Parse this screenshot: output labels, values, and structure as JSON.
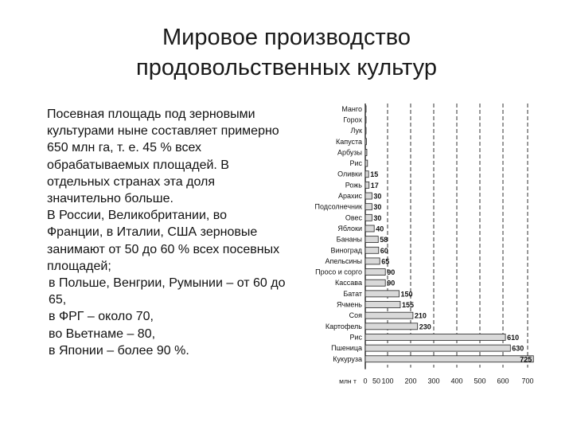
{
  "title": {
    "line1": "Мировое производство",
    "line2": "продовольственных культур"
  },
  "paragraphs": [
    "Посевная площадь под зерновыми культурами ныне составляет примерно 650 млн га, т. е. 45 % всех обрабатываемых площадей. В отдельных странах эта доля значительно больше.",
    "В России, Великобритании, во Франции, в Италии, США зерновые занимают от 50 до 60 % всех посевных площадей;",
    "в Польше, Венгрии, Румынии – от 60 до 65,",
    "в ФРГ – около 70,",
    "во Вьетнаме – 80,",
    "в Японии – более 90 %."
  ],
  "chart_data": {
    "type": "bar",
    "orientation": "horizontal",
    "title": "",
    "xlabel": "млн т",
    "ylabel": "",
    "xlim": [
      0,
      700
    ],
    "xticks": [
      0,
      50,
      100,
      200,
      300,
      400,
      500,
      600,
      700
    ],
    "grid": "vertical dashed",
    "bar_color": "#d9d9d9",
    "categories": [
      "Манго",
      "Горох",
      "Лук",
      "Капуста",
      "Арбузы",
      "Рис",
      "Оливки",
      "Рожь",
      "Арахис",
      "Подсолнечник",
      "Овес",
      "Яблоки",
      "Бананы",
      "Виноград",
      "Апельсины",
      "Просо и сорго",
      "Кассава",
      "Батат",
      "Ячмень",
      "Соя",
      "Картофель",
      "Рис",
      "Пшеница",
      "Кукуруза"
    ],
    "values": [
      1,
      2,
      3,
      5,
      7,
      10,
      15,
      17,
      30,
      30,
      30,
      40,
      58,
      60,
      65,
      90,
      90,
      150,
      155,
      210,
      230,
      610,
      630,
      725
    ],
    "value_labels": [
      "",
      "",
      "",
      "",
      "",
      "",
      "15",
      "17",
      "30",
      "30",
      "30",
      "40",
      "58",
      "60",
      "65",
      "90",
      "90",
      "150",
      "155",
      "210",
      "230",
      "610",
      "630",
      "725"
    ]
  }
}
